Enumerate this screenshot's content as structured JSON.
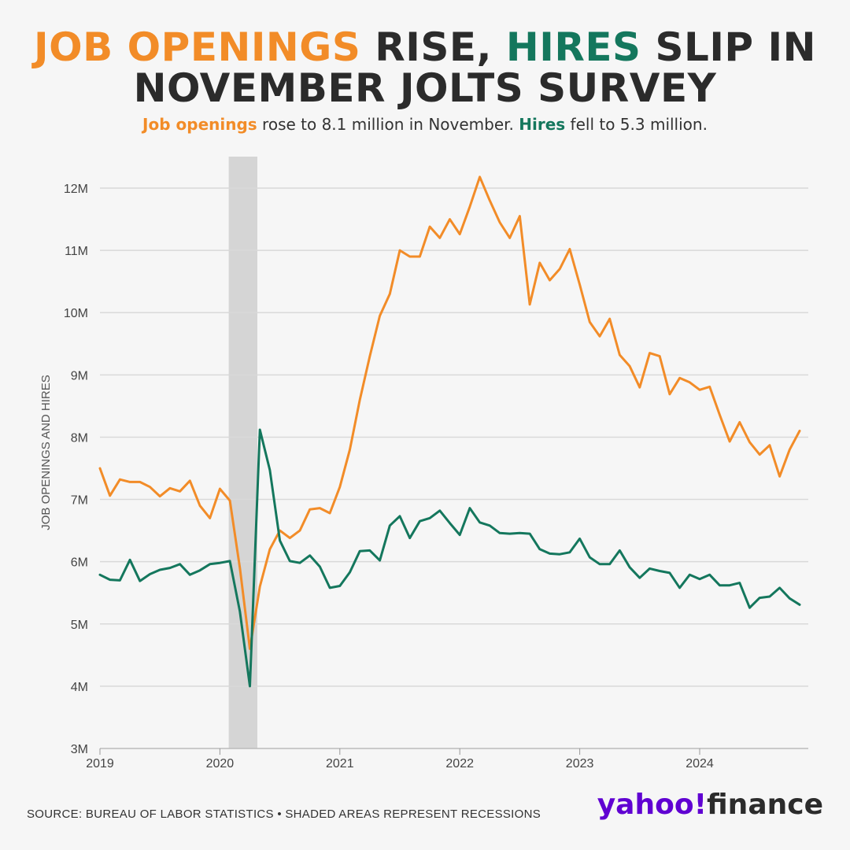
{
  "header": {
    "title_part1": "JOB OPENINGS",
    "title_part2": " RISE, ",
    "title_part3": "HIRES",
    "title_part4": " SLIP IN",
    "title_line2": "NOVEMBER JOLTS SURVEY",
    "subtitle_part1": "Job openings",
    "subtitle_part2": " rose to 8.1 million in November. ",
    "subtitle_part3": "Hires",
    "subtitle_part4": " fell to 5.3 million."
  },
  "footer": {
    "source": "SOURCE: BUREAU OF LABOR STATISTICS • SHADED AREAS REPRESENT RECESSIONS",
    "logo_part1": "yahoo!",
    "logo_part2": "finance"
  },
  "colors": {
    "openings": "#f28c28",
    "hires": "#14775d",
    "grid": "#d9d9d9",
    "recession": "#d5d5d5",
    "logo": "#6001d2"
  },
  "chart_data": {
    "type": "line",
    "ylabel": "JOB OPENINGS AND HIRES",
    "ylim": [
      3,
      12
    ],
    "y_ticks": [
      3,
      4,
      5,
      6,
      7,
      8,
      9,
      10,
      11,
      12
    ],
    "y_tick_labels": [
      "3M",
      "4M",
      "5M",
      "6M",
      "7M",
      "8M",
      "9M",
      "10M",
      "11M",
      "12M"
    ],
    "x_start": "2019-01",
    "x_tick_labels": [
      "2019",
      "2020",
      "2021",
      "2022",
      "2023",
      "2024"
    ],
    "recession": {
      "start": "2020-02",
      "end": "2020-04"
    },
    "grid": true,
    "series": [
      {
        "name": "Job openings",
        "values": [
          7.5,
          7.06,
          7.32,
          7.28,
          7.28,
          7.2,
          7.05,
          7.18,
          7.13,
          7.3,
          6.9,
          6.7,
          7.17,
          6.98,
          5.9,
          4.6,
          5.6,
          6.2,
          6.5,
          6.38,
          6.5,
          6.84,
          6.86,
          6.78,
          7.2,
          7.8,
          8.6,
          9.3,
          9.95,
          10.3,
          11.0,
          10.9,
          10.9,
          11.38,
          11.2,
          11.5,
          11.26,
          11.7,
          12.18,
          11.8,
          11.45,
          11.2,
          11.55,
          10.13,
          10.8,
          10.52,
          10.7,
          11.02,
          10.45,
          9.85,
          9.62,
          9.9,
          9.32,
          9.14,
          8.8,
          9.35,
          9.3,
          8.69,
          8.95,
          8.88,
          8.76,
          8.81,
          8.36,
          7.93,
          8.24,
          7.92,
          7.72,
          7.87,
          7.37,
          7.8,
          8.1
        ],
        "color": "#f28c28"
      },
      {
        "name": "Hires",
        "values": [
          5.79,
          5.71,
          5.7,
          6.03,
          5.69,
          5.8,
          5.87,
          5.9,
          5.96,
          5.79,
          5.86,
          5.96,
          5.98,
          6.01,
          5.2,
          4.0,
          8.12,
          7.47,
          6.34,
          6.01,
          5.98,
          6.1,
          5.92,
          5.58,
          5.61,
          5.83,
          6.17,
          6.18,
          6.02,
          6.58,
          6.73,
          6.38,
          6.65,
          6.7,
          6.82,
          6.62,
          6.43,
          6.86,
          6.63,
          6.58,
          6.46,
          6.45,
          6.46,
          6.45,
          6.2,
          6.13,
          6.12,
          6.15,
          6.37,
          6.07,
          5.96,
          5.96,
          6.18,
          5.91,
          5.74,
          5.89,
          5.85,
          5.82,
          5.58,
          5.79,
          5.72,
          5.79,
          5.62,
          5.62,
          5.66,
          5.26,
          5.42,
          5.44,
          5.58,
          5.41,
          5.31
        ],
        "color": "#14775d"
      }
    ]
  }
}
